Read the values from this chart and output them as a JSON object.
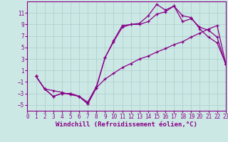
{
  "xlabel": "Windchill (Refroidissement éolien,°C)",
  "bg_color": "#cce8e4",
  "grid_color": "#aacccc",
  "line_color": "#880088",
  "xlim": [
    0,
    23
  ],
  "ylim": [
    -6,
    13
  ],
  "xticks": [
    0,
    1,
    2,
    3,
    4,
    5,
    6,
    7,
    8,
    9,
    10,
    11,
    12,
    13,
    14,
    15,
    16,
    17,
    18,
    19,
    20,
    21,
    22,
    23
  ],
  "yticks": [
    -5,
    -3,
    -1,
    1,
    3,
    5,
    7,
    9,
    11
  ],
  "line1_x": [
    1,
    2,
    3,
    4,
    5,
    6,
    7,
    8,
    9,
    10,
    11,
    12,
    13,
    14,
    15,
    16,
    17,
    18,
    19,
    20,
    21,
    22,
    23
  ],
  "line1_y": [
    0,
    -2.2,
    -2.5,
    -2.8,
    -3.2,
    -3.5,
    -4.5,
    -1.8,
    3.2,
    6.0,
    8.5,
    9.0,
    9.2,
    10.5,
    12.5,
    11.5,
    12.2,
    10.5,
    10.2,
    8.2,
    6.8,
    5.8,
    2.2
  ],
  "line2_x": [
    1,
    2,
    3,
    4,
    5,
    6,
    7,
    8,
    9,
    10,
    11,
    12,
    13,
    14,
    15,
    16,
    17,
    18,
    19,
    20,
    21,
    22,
    23
  ],
  "line2_y": [
    0,
    -2.2,
    -3.5,
    -3.0,
    -3.0,
    -3.5,
    -4.8,
    -2.0,
    3.2,
    6.2,
    8.8,
    9.0,
    9.0,
    9.5,
    10.8,
    11.2,
    12.2,
    9.5,
    10.0,
    8.5,
    8.0,
    6.8,
    2.0
  ],
  "line3_x": [
    1,
    2,
    3,
    4,
    5,
    6,
    7,
    8,
    9,
    10,
    11,
    12,
    13,
    14,
    15,
    16,
    17,
    18,
    19,
    20,
    21,
    22,
    23
  ],
  "line3_y": [
    0,
    -2.2,
    -3.5,
    -3.0,
    -3.0,
    -3.5,
    -4.8,
    -2.0,
    -0.5,
    0.5,
    1.5,
    2.2,
    3.0,
    3.5,
    4.2,
    4.8,
    5.5,
    6.0,
    6.8,
    7.5,
    8.2,
    8.8,
    2.2
  ],
  "tick_fontsize": 5.5,
  "xlabel_fontsize": 6.5
}
